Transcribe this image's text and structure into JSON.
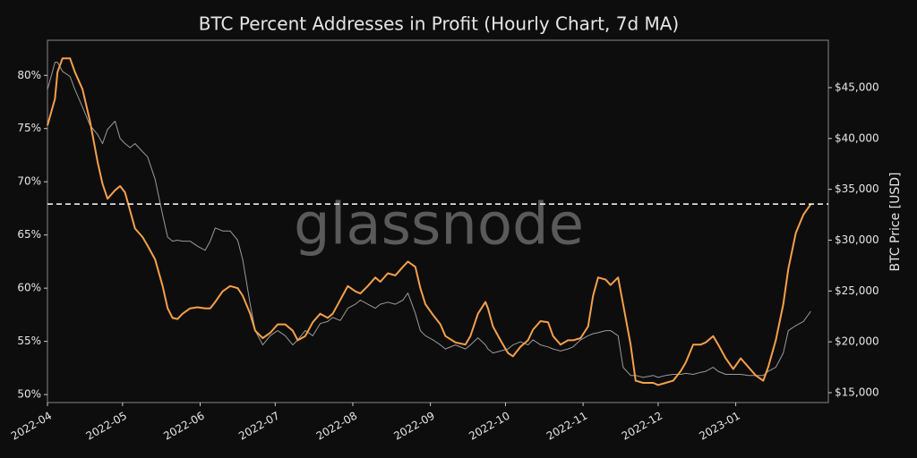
{
  "chart_data": {
    "type": "line",
    "title": "BTC Percent Addresses in Profit (Hourly Chart, 7d MA)",
    "y2_label": "BTC Price [USD]",
    "watermark": "glassnode",
    "x": [
      0,
      3,
      4,
      6,
      9,
      11,
      14,
      17,
      20,
      22,
      24,
      27,
      29,
      31,
      33,
      35,
      38,
      40,
      43,
      46,
      48,
      50,
      52,
      54,
      57,
      60,
      63,
      65,
      67,
      70,
      73,
      76,
      78,
      81,
      83,
      86,
      89,
      92,
      95,
      98,
      100,
      103,
      106,
      109,
      112,
      114,
      117,
      120,
      123,
      125,
      128,
      131,
      133,
      136,
      139,
      142,
      144,
      147,
      149,
      151,
      154,
      157,
      159,
      163,
      167,
      169,
      172,
      175,
      176,
      178,
      181,
      184,
      186,
      189,
      192,
      194,
      197,
      200,
      202,
      205,
      208,
      210,
      213,
      216,
      218,
      220,
      223,
      225,
      228,
      230,
      233,
      235,
      238,
      242,
      244,
      247,
      250,
      253,
      255,
      258,
      261,
      263,
      266,
      268,
      271,
      274,
      277,
      280,
      283,
      286,
      288,
      291,
      294,
      296,
      299,
      302,
      305
    ],
    "xlim": [
      0,
      312
    ],
    "xticks": [
      {
        "value": 0,
        "label": "2022-04"
      },
      {
        "value": 30,
        "label": "2022-05"
      },
      {
        "value": 61,
        "label": "2022-06"
      },
      {
        "value": 91,
        "label": "2022-07"
      },
      {
        "value": 122,
        "label": "2022-08"
      },
      {
        "value": 153,
        "label": "2022-09"
      },
      {
        "value": 183,
        "label": "2022-10"
      },
      {
        "value": 214,
        "label": "2022-11"
      },
      {
        "value": 244,
        "label": "2022-12"
      },
      {
        "value": 275,
        "label": "2023-01"
      }
    ],
    "ylim": [
      49.25,
      83.3
    ],
    "yticks": [
      {
        "value": 50,
        "label": "50%"
      },
      {
        "value": 55,
        "label": "55%"
      },
      {
        "value": 60,
        "label": "60%"
      },
      {
        "value": 65,
        "label": "65%"
      },
      {
        "value": 70,
        "label": "70%"
      },
      {
        "value": 75,
        "label": "75%"
      },
      {
        "value": 80,
        "label": "80%"
      }
    ],
    "y2lim": [
      14030,
      49660
    ],
    "y2ticks": [
      {
        "value": 15000,
        "label": "$15,000"
      },
      {
        "value": 20000,
        "label": "$20,000"
      },
      {
        "value": 25000,
        "label": "$25,000"
      },
      {
        "value": 30000,
        "label": "$30,000"
      },
      {
        "value": 35000,
        "label": "$35,000"
      },
      {
        "value": 40000,
        "label": "$40,000"
      },
      {
        "value": 45000,
        "label": "$45,000"
      }
    ],
    "reference_line": {
      "value": 67.9,
      "color": "#ffffff",
      "style": "dashed"
    },
    "series": [
      {
        "color": "#9a9a9a",
        "axis": "y2",
        "values": [
          44800,
          47500,
          47500,
          46600,
          46100,
          44800,
          43100,
          41300,
          40400,
          39500,
          40900,
          41700,
          40000,
          39500,
          39100,
          39500,
          38700,
          38200,
          36000,
          32500,
          30300,
          29900,
          30000,
          29900,
          29900,
          29400,
          29000,
          29900,
          31200,
          30900,
          30900,
          30000,
          28100,
          23700,
          21100,
          19700,
          20600,
          21100,
          20600,
          19700,
          20200,
          21100,
          20600,
          21800,
          22000,
          22400,
          22100,
          23300,
          23700,
          24100,
          23700,
          23300,
          23700,
          23900,
          23700,
          24100,
          24800,
          22800,
          21100,
          20600,
          20200,
          19700,
          19300,
          19700,
          19300,
          19700,
          20400,
          19700,
          19300,
          18900,
          19100,
          19300,
          19700,
          20000,
          19700,
          20200,
          19700,
          19500,
          19300,
          19100,
          19300,
          19500,
          20200,
          20600,
          20800,
          20900,
          21100,
          21100,
          20600,
          17500,
          16700,
          16700,
          16500,
          16700,
          16500,
          16700,
          16800,
          16800,
          16900,
          16800,
          17000,
          17100,
          17500,
          17100,
          16800,
          16800,
          16800,
          16700,
          16700,
          16700,
          17100,
          17500,
          18900,
          21100,
          21600,
          22000,
          23000
        ]
      },
      {
        "color": "#f5a04a",
        "axis": "y",
        "values": [
          75.3,
          77.8,
          80.3,
          81.6,
          81.6,
          80.3,
          78.7,
          75.7,
          71.9,
          69.8,
          68.4,
          69.2,
          69.6,
          69.0,
          67.3,
          65.6,
          64.8,
          64.0,
          62.7,
          60.2,
          58.1,
          57.2,
          57.1,
          57.6,
          58.1,
          58.2,
          58.1,
          58.1,
          58.7,
          59.7,
          60.2,
          60.0,
          59.3,
          57.6,
          56.0,
          55.3,
          55.8,
          56.6,
          56.6,
          56.0,
          55.1,
          55.5,
          56.8,
          57.6,
          57.2,
          57.6,
          58.9,
          60.2,
          59.7,
          59.5,
          60.2,
          61.0,
          60.6,
          61.4,
          61.2,
          62.0,
          62.5,
          62.0,
          60.0,
          58.5,
          57.5,
          56.6,
          55.5,
          54.9,
          54.7,
          55.5,
          57.6,
          58.7,
          58.1,
          56.4,
          55.1,
          53.9,
          53.6,
          54.5,
          55.1,
          56.1,
          56.9,
          56.8,
          55.5,
          54.7,
          55.1,
          55.1,
          55.3,
          56.4,
          59.3,
          61.0,
          60.8,
          60.3,
          61.0,
          58.5,
          54.7,
          51.3,
          51.1,
          51.1,
          50.9,
          51.1,
          51.3,
          52.2,
          53.0,
          54.7,
          54.7,
          54.9,
          55.5,
          54.7,
          53.4,
          52.4,
          53.4,
          52.6,
          51.8,
          51.3,
          52.6,
          55.1,
          58.5,
          61.8,
          65.2,
          66.9,
          67.9
        ]
      }
    ]
  }
}
